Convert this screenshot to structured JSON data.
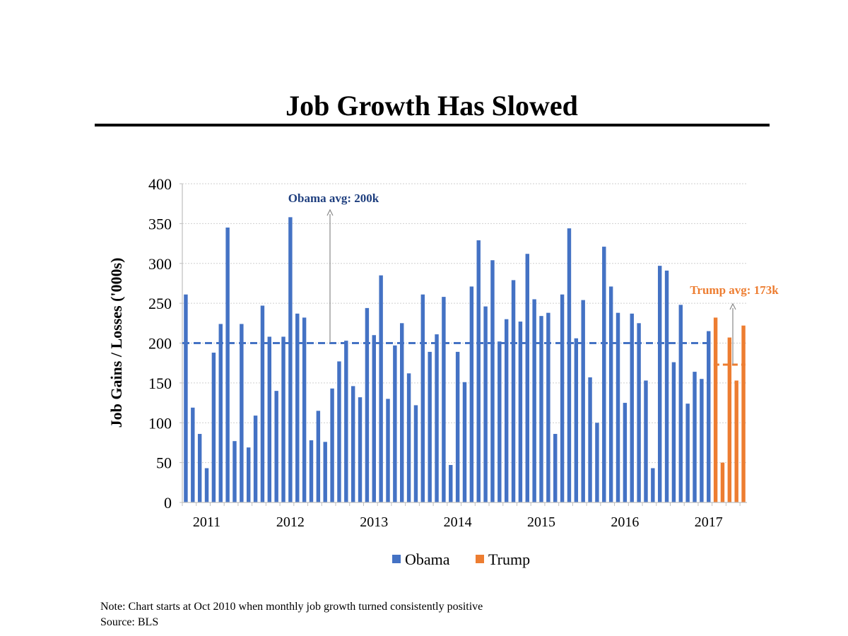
{
  "title": "Job Growth Has Slowed",
  "note": "Note: Chart starts at Oct 2010 when monthly job growth turned consistently positive",
  "source": "Source: BLS",
  "colors": {
    "obama": "#4472C4",
    "trump": "#ED7D31",
    "obama_text": "#1F3F7F",
    "trump_text": "#ED7D31",
    "grid": "#cfcfcf",
    "arrow": "#888888"
  },
  "chart_data": {
    "type": "bar",
    "title": "Job Growth Has Slowed",
    "xlabel": "",
    "ylabel": "Job Gains / Losses ('000s)",
    "ylim": [
      0,
      400
    ],
    "yticks": [
      0,
      50,
      100,
      150,
      200,
      250,
      300,
      350,
      400
    ],
    "grid": true,
    "legend_position": "bottom",
    "x_tick_labels": [
      {
        "label": "2011",
        "index": 3
      },
      {
        "label": "2012",
        "index": 15
      },
      {
        "label": "2013",
        "index": 27
      },
      {
        "label": "2014",
        "index": 39
      },
      {
        "label": "2015",
        "index": 51
      },
      {
        "label": "2016",
        "index": 63
      },
      {
        "label": "2017",
        "index": 75
      }
    ],
    "series": [
      {
        "name": "Obama",
        "start_month": "Oct 2010",
        "values": [
          261,
          119,
          86,
          43,
          188,
          224,
          345,
          77,
          224,
          69,
          109,
          247,
          208,
          140,
          208,
          358,
          237,
          232,
          78,
          115,
          76,
          143,
          177,
          203,
          146,
          132,
          244,
          210,
          285,
          130,
          197,
          225,
          162,
          122,
          261,
          189,
          211,
          258,
          47,
          189,
          151,
          271,
          329,
          246,
          304,
          202,
          230,
          279,
          227,
          312,
          255,
          234,
          238,
          86,
          261,
          344,
          206,
          254,
          157,
          100,
          321,
          271,
          238,
          125,
          237,
          225,
          153,
          43,
          297,
          291,
          176,
          248,
          124,
          164,
          155,
          215
        ],
        "average": 200,
        "average_label": "Obama avg: 200k"
      },
      {
        "name": "Trump",
        "start_month": "Feb 2017",
        "values": [
          232,
          50,
          207,
          153,
          222
        ],
        "average": 173,
        "average_label": "Trump avg: 173k"
      }
    ]
  }
}
